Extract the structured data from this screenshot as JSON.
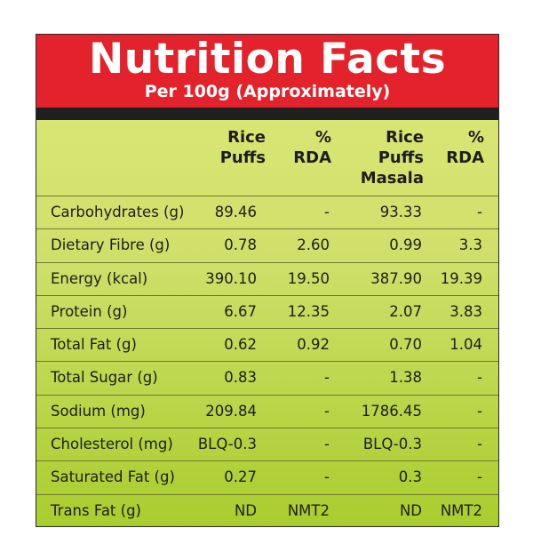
{
  "title": "Nutrition Facts",
  "subtitle": "Per 100g (Approximately)",
  "columns": [
    "Rice\nPuffs",
    "%\nRDA",
    "Rice\nPuffs\nMasala",
    "%\nRDA"
  ],
  "rows": [
    {
      "label": "Carbohydrates (g)",
      "v1": "89.46",
      "v2": "-",
      "v3": "93.33",
      "v4": "-"
    },
    {
      "label": "Dietary Fibre (g)",
      "v1": "0.78",
      "v2": "2.60",
      "v3": "0.99",
      "v4": "3.3"
    },
    {
      "label": "Energy (kcal)",
      "v1": "390.10",
      "v2": "19.50",
      "v3": "387.90",
      "v4": "19.39"
    },
    {
      "label": "Protein (g)",
      "v1": "6.67",
      "v2": "12.35",
      "v3": "2.07",
      "v4": "3.83"
    },
    {
      "label": "Total Fat (g)",
      "v1": "0.62",
      "v2": "0.92",
      "v3": "0.70",
      "v4": "1.04"
    },
    {
      "label": "Total Sugar (g)",
      "v1": "0.83",
      "v2": "-",
      "v3": "1.38",
      "v4": "-"
    },
    {
      "label": "Sodium (mg)",
      "v1": "209.84",
      "v2": "-",
      "v3": "1786.45",
      "v4": "-"
    },
    {
      "label": "Cholesterol (mg)",
      "v1": "BLQ-0.3",
      "v2": "-",
      "v3": "BLQ-0.3",
      "v4": "-"
    },
    {
      "label": "Saturated Fat (g)",
      "v1": "0.27",
      "v2": "-",
      "v3": "0.3",
      "v4": "-"
    },
    {
      "label": "Trans Fat (g)",
      "v1": "ND",
      "v2": "NMT2",
      "v3": "ND",
      "v4": "NMT2"
    }
  ],
  "colors": {
    "header": "#e3222b",
    "bar": "#1f1f1f",
    "panel_top": "#dfe97a",
    "panel_bottom": "#a9cd2e"
  }
}
